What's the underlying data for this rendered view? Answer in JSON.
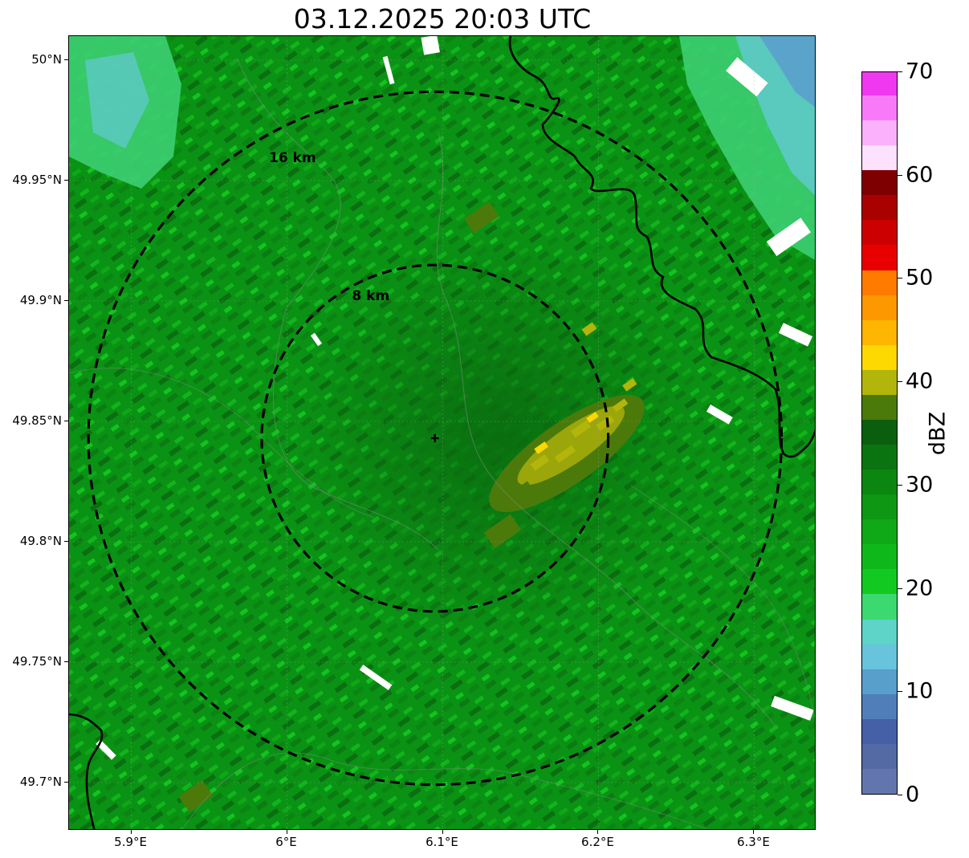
{
  "title": "03.12.2025 20:03 UTC",
  "lat_labels": [
    "50°N",
    "49.95°N",
    "49.9°N",
    "49.85°N",
    "49.8°N",
    "49.75°N",
    "49.7°N"
  ],
  "lat_values": [
    50.0,
    49.95,
    49.9,
    49.85,
    49.8,
    49.75,
    49.7
  ],
  "lon_labels": [
    "5.9°E",
    "6°E",
    "6.1°E",
    "6.2°E",
    "6.3°E"
  ],
  "lon_values": [
    5.9,
    6.0,
    6.1,
    6.2,
    6.3
  ],
  "extent": {
    "lon_min": 5.86,
    "lon_max": 6.34,
    "lat_min": 49.68,
    "lat_max": 50.01
  },
  "radar_site": {
    "lon": 6.095,
    "lat": 49.843
  },
  "rings": [
    {
      "label": "8 km",
      "radius_km": 8
    },
    {
      "label": "16 km",
      "radius_km": 16
    }
  ],
  "colorbar": {
    "label": "dBZ",
    "min": 0,
    "max": 70,
    "tick_labels": [
      "0",
      "10",
      "20",
      "30",
      "40",
      "50",
      "60",
      "70"
    ],
    "tick_values": [
      0,
      10,
      20,
      30,
      40,
      50,
      60,
      70
    ],
    "colors": [
      "#6276ad",
      "#536aa4",
      "#4660a7",
      "#4f7eb9",
      "#589fcb",
      "#68c3dc",
      "#5ed3c7",
      "#3bd970",
      "#12c922",
      "#0fb81a",
      "#0fa816",
      "#0d9713",
      "#0b8611",
      "#0a7510",
      "#0b5e0d",
      "#4b7a0b",
      "#b2b50a",
      "#fdd801",
      "#ffb600",
      "#fe9800",
      "#fe7b00",
      "#e80000",
      "#cc0000",
      "#a90000",
      "#7f0000",
      "#fde1fd",
      "#fbb1fb",
      "#f97af9",
      "#ef38ef"
    ]
  }
}
